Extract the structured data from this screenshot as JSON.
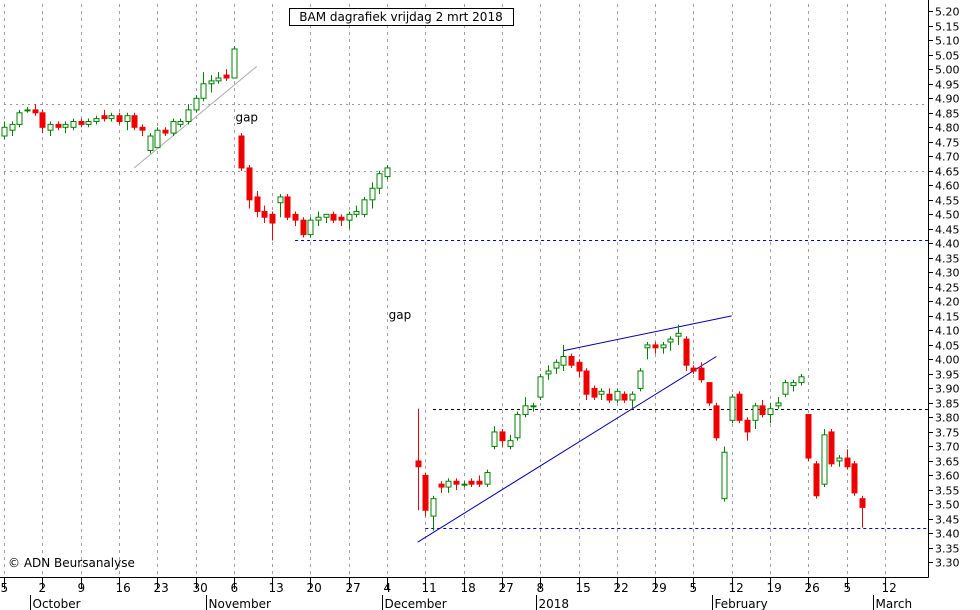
{
  "chart_data": {
    "type": "candlestick",
    "title": "BAM dagrafiek vrijdag 2 mrt 2018",
    "copyright": "© ADN Beursanalyse",
    "y_axis": {
      "ylim": [
        3.25,
        5.225
      ],
      "ticks": [
        "5.20",
        "5.15",
        "5.10",
        "5.05",
        "5.00",
        "4.95",
        "4.90",
        "4.85",
        "4.80",
        "4.75",
        "4.70",
        "4.65",
        "4.60",
        "4.55",
        "4.50",
        "4.45",
        "4.40",
        "4.35",
        "4.30",
        "4.25",
        "4.20",
        "4.15",
        "4.10",
        "4.05",
        "4.00",
        "3.95",
        "3.90",
        "3.85",
        "3.80",
        "3.75",
        "3.70",
        "3.65",
        "3.60",
        "3.55",
        "3.50",
        "3.45",
        "3.40",
        "3.35",
        "3.30"
      ],
      "position": "right"
    },
    "x_axis": {
      "date_labels": [
        {
          "label": "5",
          "slot": 0
        },
        {
          "label": "2",
          "slot": 5
        },
        {
          "label": "9",
          "slot": 10
        },
        {
          "label": "16",
          "slot": 15
        },
        {
          "label": "23",
          "slot": 20
        },
        {
          "label": "30",
          "slot": 25
        },
        {
          "label": "6",
          "slot": 30
        },
        {
          "label": "13",
          "slot": 35
        },
        {
          "label": "20",
          "slot": 40
        },
        {
          "label": "27",
          "slot": 45
        },
        {
          "label": "4",
          "slot": 50
        },
        {
          "label": "11",
          "slot": 55
        },
        {
          "label": "18",
          "slot": 60
        },
        {
          "label": "27",
          "slot": 65
        },
        {
          "label": "8",
          "slot": 70
        },
        {
          "label": "15",
          "slot": 75
        },
        {
          "label": "22",
          "slot": 80
        },
        {
          "label": "29",
          "slot": 85
        },
        {
          "label": "5",
          "slot": 90
        },
        {
          "label": "12",
          "slot": 95
        },
        {
          "label": "19",
          "slot": 100
        },
        {
          "label": "26",
          "slot": 105
        },
        {
          "label": "5",
          "slot": 110
        },
        {
          "label": "12",
          "slot": 115
        }
      ],
      "month_labels": [
        {
          "label": "October",
          "slot": 4
        },
        {
          "label": "November",
          "slot": 27
        },
        {
          "label": "December",
          "slot": 50
        },
        {
          "label": "2018",
          "slot": 70
        },
        {
          "label": "February",
          "slot": 93
        },
        {
          "label": "March",
          "slot": 114
        }
      ]
    },
    "candles": [
      {
        "slot": 0,
        "o": 4.77,
        "h": 4.82,
        "l": 4.76,
        "c": 4.8
      },
      {
        "slot": 1,
        "o": 4.79,
        "h": 4.82,
        "l": 4.77,
        "c": 4.81
      },
      {
        "slot": 2,
        "o": 4.81,
        "h": 4.86,
        "l": 4.8,
        "c": 4.85
      },
      {
        "slot": 3,
        "o": 4.86,
        "h": 4.87,
        "l": 4.85,
        "c": 4.86
      },
      {
        "slot": 4,
        "o": 4.86,
        "h": 4.88,
        "l": 4.84,
        "c": 4.85
      },
      {
        "slot": 5,
        "o": 4.85,
        "h": 4.86,
        "l": 4.78,
        "c": 4.8
      },
      {
        "slot": 6,
        "o": 4.79,
        "h": 4.82,
        "l": 4.77,
        "c": 4.81
      },
      {
        "slot": 7,
        "o": 4.81,
        "h": 4.82,
        "l": 4.79,
        "c": 4.8
      },
      {
        "slot": 8,
        "o": 4.8,
        "h": 4.82,
        "l": 4.78,
        "c": 4.81
      },
      {
        "slot": 9,
        "o": 4.8,
        "h": 4.83,
        "l": 4.79,
        "c": 4.82
      },
      {
        "slot": 10,
        "o": 4.82,
        "h": 4.83,
        "l": 4.8,
        "c": 4.81
      },
      {
        "slot": 11,
        "o": 4.81,
        "h": 4.83,
        "l": 4.8,
        "c": 4.82
      },
      {
        "slot": 12,
        "o": 4.82,
        "h": 4.84,
        "l": 4.81,
        "c": 4.83
      },
      {
        "slot": 13,
        "o": 4.84,
        "h": 4.86,
        "l": 4.82,
        "c": 4.83
      },
      {
        "slot": 14,
        "o": 4.83,
        "h": 4.85,
        "l": 4.82,
        "c": 4.84
      },
      {
        "slot": 15,
        "o": 4.84,
        "h": 4.85,
        "l": 4.81,
        "c": 4.82
      },
      {
        "slot": 16,
        "o": 4.82,
        "h": 4.85,
        "l": 4.79,
        "c": 4.84
      },
      {
        "slot": 17,
        "o": 4.84,
        "h": 4.85,
        "l": 4.79,
        "c": 4.8
      },
      {
        "slot": 18,
        "o": 4.8,
        "h": 4.81,
        "l": 4.77,
        "c": 4.79
      },
      {
        "slot": 19,
        "o": 4.72,
        "h": 4.78,
        "l": 4.71,
        "c": 4.77
      },
      {
        "slot": 20,
        "o": 4.73,
        "h": 4.8,
        "l": 4.73,
        "c": 4.79
      },
      {
        "slot": 21,
        "o": 4.79,
        "h": 4.8,
        "l": 4.77,
        "c": 4.78
      },
      {
        "slot": 22,
        "o": 4.78,
        "h": 4.83,
        "l": 4.77,
        "c": 4.82
      },
      {
        "slot": 23,
        "o": 4.81,
        "h": 4.83,
        "l": 4.8,
        "c": 4.82
      },
      {
        "slot": 24,
        "o": 4.82,
        "h": 4.88,
        "l": 4.81,
        "c": 4.86
      },
      {
        "slot": 25,
        "o": 4.86,
        "h": 4.91,
        "l": 4.85,
        "c": 4.9
      },
      {
        "slot": 26,
        "o": 4.9,
        "h": 4.99,
        "l": 4.89,
        "c": 4.95
      },
      {
        "slot": 27,
        "o": 4.95,
        "h": 4.98,
        "l": 4.92,
        "c": 4.96
      },
      {
        "slot": 28,
        "o": 4.96,
        "h": 4.99,
        "l": 4.95,
        "c": 4.97
      },
      {
        "slot": 29,
        "o": 4.98,
        "h": 5.0,
        "l": 4.96,
        "c": 4.97
      },
      {
        "slot": 30,
        "o": 4.97,
        "h": 5.08,
        "l": 4.97,
        "c": 5.07
      },
      {
        "slot": 31,
        "o": 4.77,
        "h": 4.78,
        "l": 4.65,
        "c": 4.66
      },
      {
        "slot": 32,
        "o": 4.66,
        "h": 4.67,
        "l": 4.52,
        "c": 4.55
      },
      {
        "slot": 33,
        "o": 4.56,
        "h": 4.58,
        "l": 4.49,
        "c": 4.51
      },
      {
        "slot": 34,
        "o": 4.51,
        "h": 4.53,
        "l": 4.47,
        "c": 4.49
      },
      {
        "slot": 35,
        "o": 4.5,
        "h": 4.51,
        "l": 4.41,
        "c": 4.47
      },
      {
        "slot": 36,
        "o": 4.54,
        "h": 4.57,
        "l": 4.49,
        "c": 4.56
      },
      {
        "slot": 37,
        "o": 4.56,
        "h": 4.57,
        "l": 4.48,
        "c": 4.49
      },
      {
        "slot": 38,
        "o": 4.5,
        "h": 4.51,
        "l": 4.46,
        "c": 4.48
      },
      {
        "slot": 39,
        "o": 4.48,
        "h": 4.49,
        "l": 4.42,
        "c": 4.43
      },
      {
        "slot": 40,
        "o": 4.43,
        "h": 4.49,
        "l": 4.42,
        "c": 4.48
      },
      {
        "slot": 41,
        "o": 4.48,
        "h": 4.51,
        "l": 4.46,
        "c": 4.49
      },
      {
        "slot": 42,
        "o": 4.49,
        "h": 4.5,
        "l": 4.47,
        "c": 4.5
      },
      {
        "slot": 43,
        "o": 4.5,
        "h": 4.51,
        "l": 4.47,
        "c": 4.48
      },
      {
        "slot": 44,
        "o": 4.49,
        "h": 4.5,
        "l": 4.46,
        "c": 4.48
      },
      {
        "slot": 45,
        "o": 4.48,
        "h": 4.51,
        "l": 4.45,
        "c": 4.5
      },
      {
        "slot": 46,
        "o": 4.5,
        "h": 4.53,
        "l": 4.49,
        "c": 4.51
      },
      {
        "slot": 47,
        "o": 4.5,
        "h": 4.56,
        "l": 4.49,
        "c": 4.55
      },
      {
        "slot": 48,
        "o": 4.55,
        "h": 4.61,
        "l": 4.52,
        "c": 4.59
      },
      {
        "slot": 49,
        "o": 4.59,
        "h": 4.65,
        "l": 4.57,
        "c": 4.64
      },
      {
        "slot": 50,
        "o": 4.63,
        "h": 4.67,
        "l": 4.62,
        "c": 4.66
      },
      {
        "slot": 54,
        "o": 3.65,
        "h": 3.83,
        "l": 3.48,
        "c": 3.63
      },
      {
        "slot": 55,
        "o": 3.6,
        "h": 3.61,
        "l": 3.46,
        "c": 3.48
      },
      {
        "slot": 56,
        "o": 3.46,
        "h": 3.53,
        "l": 3.41,
        "c": 3.52
      },
      {
        "slot": 57,
        "o": 3.57,
        "h": 3.58,
        "l": 3.54,
        "c": 3.56
      },
      {
        "slot": 58,
        "o": 3.56,
        "h": 3.59,
        "l": 3.54,
        "c": 3.58
      },
      {
        "slot": 59,
        "o": 3.58,
        "h": 3.59,
        "l": 3.55,
        "c": 3.57
      },
      {
        "slot": 60,
        "o": 3.57,
        "h": 3.58,
        "l": 3.56,
        "c": 3.57
      },
      {
        "slot": 61,
        "o": 3.58,
        "h": 3.59,
        "l": 3.56,
        "c": 3.57
      },
      {
        "slot": 62,
        "o": 3.58,
        "h": 3.6,
        "l": 3.56,
        "c": 3.57
      },
      {
        "slot": 63,
        "o": 3.57,
        "h": 3.62,
        "l": 3.56,
        "c": 3.61
      },
      {
        "slot": 64,
        "o": 3.7,
        "h": 3.77,
        "l": 3.69,
        "c": 3.75
      },
      {
        "slot": 65,
        "o": 3.75,
        "h": 3.76,
        "l": 3.7,
        "c": 3.72
      },
      {
        "slot": 66,
        "o": 3.7,
        "h": 3.74,
        "l": 3.69,
        "c": 3.72
      },
      {
        "slot": 67,
        "o": 3.73,
        "h": 3.82,
        "l": 3.72,
        "c": 3.81
      },
      {
        "slot": 68,
        "o": 3.81,
        "h": 3.87,
        "l": 3.8,
        "c": 3.84
      },
      {
        "slot": 69,
        "o": 3.84,
        "h": 3.85,
        "l": 3.82,
        "c": 3.84
      },
      {
        "slot": 70,
        "o": 3.87,
        "h": 3.95,
        "l": 3.86,
        "c": 3.94
      },
      {
        "slot": 71,
        "o": 3.95,
        "h": 3.98,
        "l": 3.93,
        "c": 3.96
      },
      {
        "slot": 72,
        "o": 3.97,
        "h": 4.0,
        "l": 3.95,
        "c": 3.99
      },
      {
        "slot": 73,
        "o": 3.98,
        "h": 4.05,
        "l": 3.96,
        "c": 4.01
      },
      {
        "slot": 74,
        "o": 4.01,
        "h": 4.02,
        "l": 3.97,
        "c": 3.98
      },
      {
        "slot": 75,
        "o": 3.99,
        "h": 4.0,
        "l": 3.94,
        "c": 3.96
      },
      {
        "slot": 76,
        "o": 3.96,
        "h": 3.97,
        "l": 3.86,
        "c": 3.88
      },
      {
        "slot": 77,
        "o": 3.9,
        "h": 3.91,
        "l": 3.86,
        "c": 3.87
      },
      {
        "slot": 78,
        "o": 3.88,
        "h": 3.9,
        "l": 3.86,
        "c": 3.89
      },
      {
        "slot": 79,
        "o": 3.88,
        "h": 3.9,
        "l": 3.85,
        "c": 3.86
      },
      {
        "slot": 80,
        "o": 3.86,
        "h": 3.9,
        "l": 3.85,
        "c": 3.89
      },
      {
        "slot": 81,
        "o": 3.88,
        "h": 3.89,
        "l": 3.85,
        "c": 3.86
      },
      {
        "slot": 82,
        "o": 3.86,
        "h": 3.89,
        "l": 3.83,
        "c": 3.88
      },
      {
        "slot": 83,
        "o": 3.9,
        "h": 3.97,
        "l": 3.89,
        "c": 3.96
      },
      {
        "slot": 84,
        "o": 4.04,
        "h": 4.06,
        "l": 4.0,
        "c": 4.05
      },
      {
        "slot": 85,
        "o": 4.05,
        "h": 4.06,
        "l": 4.02,
        "c": 4.04
      },
      {
        "slot": 86,
        "o": 4.04,
        "h": 4.06,
        "l": 4.02,
        "c": 4.05
      },
      {
        "slot": 87,
        "o": 4.06,
        "h": 4.08,
        "l": 4.03,
        "c": 4.07
      },
      {
        "slot": 88,
        "o": 4.08,
        "h": 4.12,
        "l": 4.05,
        "c": 4.09
      },
      {
        "slot": 89,
        "o": 4.07,
        "h": 4.08,
        "l": 3.96,
        "c": 3.98
      },
      {
        "slot": 90,
        "o": 3.97,
        "h": 3.98,
        "l": 3.95,
        "c": 3.96
      },
      {
        "slot": 91,
        "o": 3.97,
        "h": 3.99,
        "l": 3.92,
        "c": 3.93
      },
      {
        "slot": 92,
        "o": 3.92,
        "h": 3.92,
        "l": 3.84,
        "c": 3.85
      },
      {
        "slot": 93,
        "o": 3.84,
        "h": 3.85,
        "l": 3.72,
        "c": 3.73
      },
      {
        "slot": 94,
        "o": 3.52,
        "h": 3.7,
        "l": 3.51,
        "c": 3.68
      },
      {
        "slot": 95,
        "o": 3.79,
        "h": 3.88,
        "l": 3.78,
        "c": 3.87
      },
      {
        "slot": 96,
        "o": 3.88,
        "h": 3.89,
        "l": 3.78,
        "c": 3.79
      },
      {
        "slot": 97,
        "o": 3.79,
        "h": 3.8,
        "l": 3.72,
        "c": 3.75
      },
      {
        "slot": 98,
        "o": 3.79,
        "h": 3.85,
        "l": 3.76,
        "c": 3.84
      },
      {
        "slot": 99,
        "o": 3.84,
        "h": 3.86,
        "l": 3.8,
        "c": 3.81
      },
      {
        "slot": 100,
        "o": 3.81,
        "h": 3.85,
        "l": 3.78,
        "c": 3.83
      },
      {
        "slot": 101,
        "o": 3.84,
        "h": 3.87,
        "l": 3.83,
        "c": 3.85
      },
      {
        "slot": 102,
        "o": 3.88,
        "h": 3.93,
        "l": 3.87,
        "c": 3.92
      },
      {
        "slot": 103,
        "o": 3.91,
        "h": 3.93,
        "l": 3.89,
        "c": 3.92
      },
      {
        "slot": 104,
        "o": 3.92,
        "h": 3.95,
        "l": 3.91,
        "c": 3.94
      },
      {
        "slot": 105,
        "o": 3.81,
        "h": 3.81,
        "l": 3.65,
        "c": 3.66
      },
      {
        "slot": 106,
        "o": 3.64,
        "h": 3.65,
        "l": 3.52,
        "c": 3.53
      },
      {
        "slot": 107,
        "o": 3.57,
        "h": 3.76,
        "l": 3.56,
        "c": 3.74
      },
      {
        "slot": 108,
        "o": 3.75,
        "h": 3.76,
        "l": 3.63,
        "c": 3.64
      },
      {
        "slot": 109,
        "o": 3.65,
        "h": 3.67,
        "l": 3.63,
        "c": 3.66
      },
      {
        "slot": 110,
        "o": 3.66,
        "h": 3.69,
        "l": 3.62,
        "c": 3.63
      },
      {
        "slot": 111,
        "o": 3.64,
        "h": 3.65,
        "l": 3.53,
        "c": 3.54
      },
      {
        "slot": 112,
        "o": 3.52,
        "h": 3.53,
        "l": 3.42,
        "c": 3.49
      }
    ],
    "annotations": [
      {
        "text": "gap",
        "slot": 31,
        "price": 4.82
      },
      {
        "text": "gap",
        "slot": 51,
        "price": 4.14
      }
    ],
    "horizontal_lines": [
      {
        "price": 4.41,
        "from_slot": 38,
        "style": "dashed",
        "color": "#0000aa"
      },
      {
        "price": 3.83,
        "from_slot": 56,
        "style": "dashed",
        "color": "#000000"
      },
      {
        "price": 3.42,
        "from_slot": 55,
        "style": "dashed",
        "color": "#0000aa"
      },
      {
        "price": 4.65,
        "from_slot": 0,
        "style": "dotted",
        "color": "#999999"
      },
      {
        "price": 4.88,
        "from_slot": 0,
        "style": "dotted",
        "color": "#999999"
      }
    ],
    "trend_lines": [
      {
        "from": {
          "slot": 17,
          "price": 4.66
        },
        "to": {
          "slot": 33,
          "price": 5.01
        },
        "color": "#aaaaaa"
      },
      {
        "from": {
          "slot": 54,
          "price": 3.37
        },
        "to": {
          "slot": 93,
          "price": 4.01
        },
        "color": "#0000aa"
      },
      {
        "from": {
          "slot": 73,
          "price": 4.03
        },
        "to": {
          "slot": 95,
          "price": 4.15
        },
        "color": "#0000aa"
      }
    ],
    "colors": {
      "up": "#008000",
      "down": "#ee0000",
      "background": "#ffffff",
      "grid": "#a0a0a0"
    },
    "grid": true
  }
}
